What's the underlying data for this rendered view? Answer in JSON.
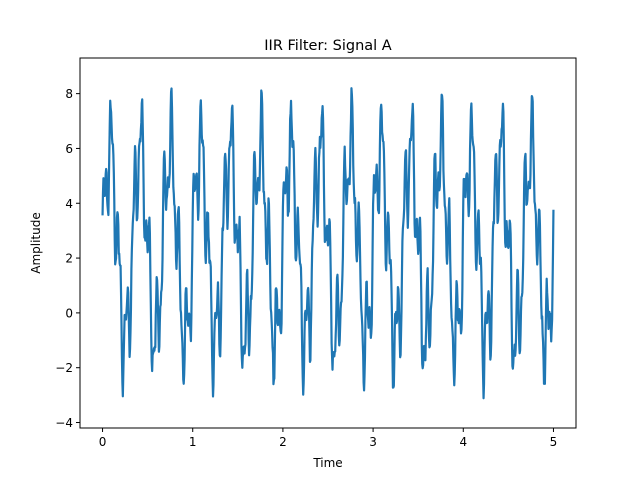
{
  "chart_data": {
    "type": "line",
    "title": "IIR Filter: Signal A",
    "xlabel": "Time",
    "ylabel": "Amplitude",
    "xlim": [
      -0.25,
      5.25
    ],
    "ylim": [
      -4.2,
      9.3
    ],
    "x_ticks": [
      0,
      1,
      2,
      3,
      4,
      5
    ],
    "y_ticks": [
      -4,
      -2,
      0,
      2,
      4,
      6,
      8
    ],
    "x_tick_labels": [
      "0",
      "1",
      "2",
      "3",
      "4",
      "5"
    ],
    "y_tick_labels": [
      "−4",
      "−2",
      "0",
      "2",
      "4",
      "6",
      "8"
    ],
    "grid": false,
    "legend": "none",
    "colors": {
      "line": "#1f77b4"
    },
    "series": [
      {
        "x_start": 0,
        "x_end": 5,
        "samples": 1000,
        "components": [
          {
            "kind": "offset",
            "value": 2.5
          },
          {
            "kind": "sine",
            "amplitude": 3.5,
            "frequency_hz": 3,
            "phase": 0
          },
          {
            "kind": "sine",
            "amplitude": 1.5,
            "frequency_hz": 12,
            "phase": 0.4
          },
          {
            "kind": "sine",
            "amplitude": 0.8,
            "frequency_hz": 25,
            "phase": 1.1
          },
          {
            "kind": "noise",
            "amplitude": 0.25
          }
        ],
        "range_observed": [
          -3.6,
          8.6
        ]
      }
    ]
  }
}
